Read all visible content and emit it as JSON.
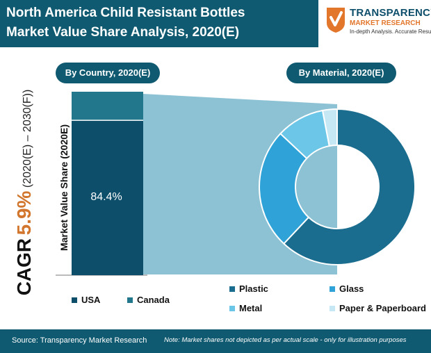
{
  "header": {
    "title_line1": "North America Child Resistant Bottles",
    "title_line2": "Market Value Share Analysis, 2020(E)"
  },
  "logo": {
    "name": "TRANSPARENCY",
    "sub": "MARKET RESEARCH",
    "tagline": "In-depth Analysis. Accurate Results"
  },
  "cagr": {
    "label": "CAGR",
    "value": "5.9%",
    "period": "(2020(E) – 2030(F))"
  },
  "colors": {
    "primary": "#0f5a70",
    "accent": "#d1762c",
    "usa": "#0d4f6b",
    "canada": "#23778d",
    "plastic": "#1a6d8e",
    "glass": "#2fa3d8",
    "metal": "#6cc6e8",
    "paper": "#c6e8f4"
  },
  "chart_data": [
    {
      "type": "bar",
      "title": "By Country, 2020(E)",
      "ylabel": "Market Value Share (2020E)",
      "stacked": true,
      "series": [
        {
          "name": "USA",
          "value": 84.4,
          "label": "84.4%"
        },
        {
          "name": "Canada",
          "value": 15.6
        }
      ]
    },
    {
      "type": "pie",
      "donut": true,
      "title": "By Material, 2020(E)",
      "slices": [
        {
          "name": "Plastic",
          "value": 62
        },
        {
          "name": "Glass",
          "value": 25
        },
        {
          "name": "Metal",
          "value": 10
        },
        {
          "name": "Paper & Paperboard",
          "value": 3
        }
      ]
    }
  ],
  "footer": {
    "source": "Source: Transparency Market Research",
    "note": "Note: Market shares not depicted as per actual scale - only for illustration purposes"
  }
}
